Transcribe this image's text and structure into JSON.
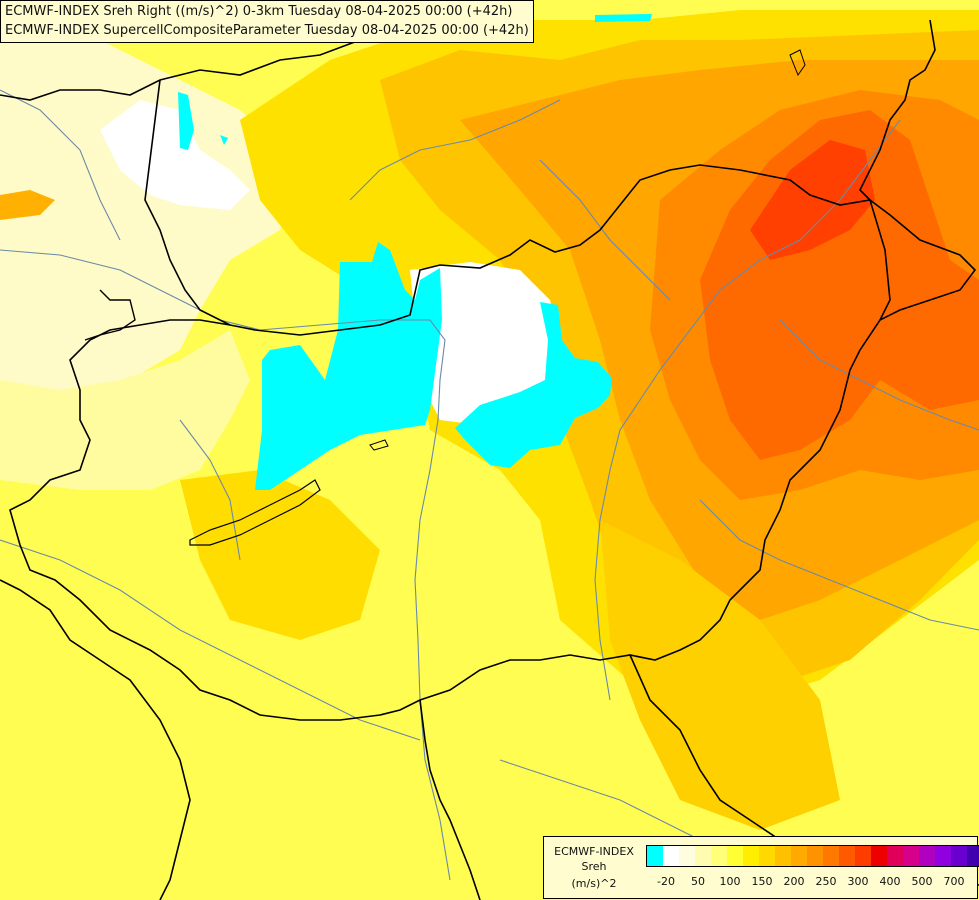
{
  "header": {
    "line1": "ECMWF-INDEX Sreh Right ((m/s)^2) 0-3km Tuesday 08-04-2025 00:00 (+42h)",
    "line2": "ECMWF-INDEX SupercellCompositeParameter Tuesday 08-04-2025 00:00 (+42h)"
  },
  "legend": {
    "model": "ECMWF-INDEX",
    "param": "Sreh",
    "unit": "(m/s)^2",
    "colors": [
      "#00ffff",
      "#ffffff",
      "#fffde0",
      "#fffcb0",
      "#ffff7a",
      "#ffff33",
      "#ffee00",
      "#ffd900",
      "#ffc000",
      "#ffaa00",
      "#ff9200",
      "#ff7800",
      "#ff5a00",
      "#ff3c00",
      "#ee0000",
      "#e0005a",
      "#d6008a",
      "#b000c0",
      "#9000e0",
      "#6a00d0",
      "#4000b0",
      "#20008a",
      "#080060"
    ],
    "ticks": [
      "-20",
      "50",
      "100",
      "150",
      "200",
      "250",
      "300",
      "400",
      "500",
      "700"
    ]
  },
  "colors": {
    "background": "#fffd52",
    "zero_area": "#ffffff",
    "negative_area": "#00ffff",
    "high_helicity": "#ff5a00"
  }
}
